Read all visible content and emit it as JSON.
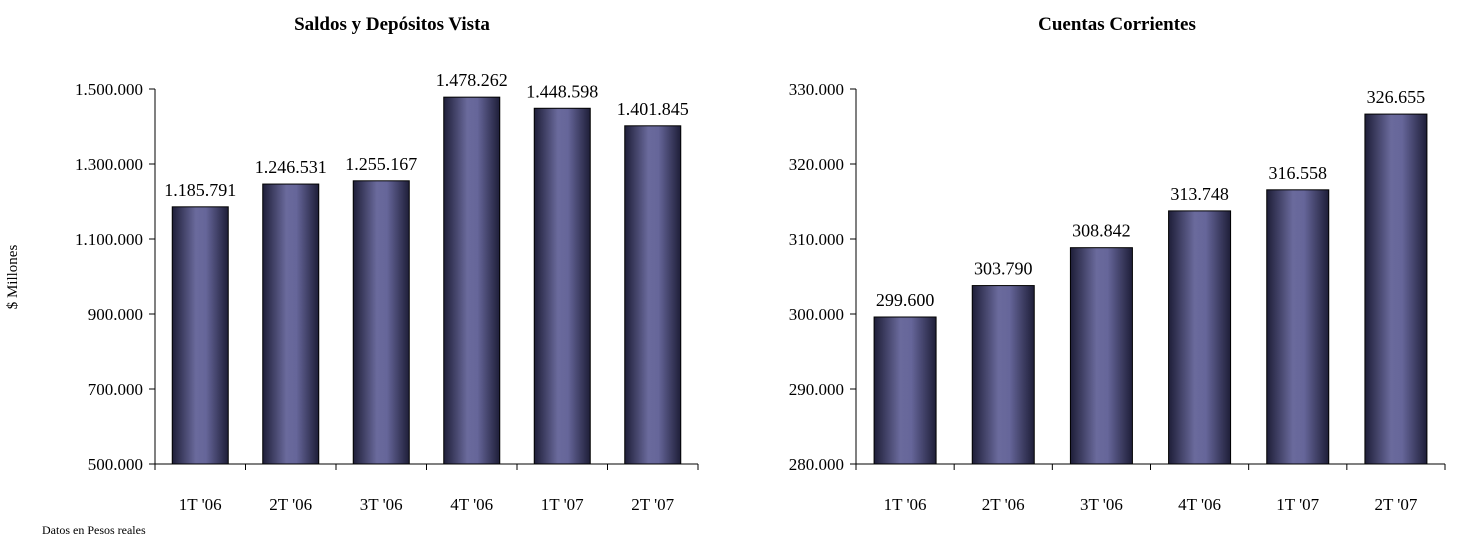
{
  "chart_data": [
    {
      "type": "bar",
      "title": "Saldos y Depósitos Vista",
      "ylabel": "$ Millones",
      "xlabel": "",
      "categories": [
        "1T '06",
        "2T '06",
        "3T '06",
        "4T '06",
        "1T '07",
        "2T '07"
      ],
      "values": [
        1185791,
        1246531,
        1255167,
        1478262,
        1448598,
        1401845
      ],
      "value_labels": [
        "1.185.791",
        "1.246.531",
        "1.255.167",
        "1.478.262",
        "1.448.598",
        "1.401.845"
      ],
      "ylim": [
        500000,
        1500000
      ],
      "yticks": [
        500000,
        700000,
        900000,
        1100000,
        1300000,
        1500000
      ],
      "ytick_labels": [
        "500.000",
        "700.000",
        "900.000",
        "1.100.000",
        "1.300.000",
        "1.500.000"
      ],
      "grid": false,
      "legend": "none"
    },
    {
      "type": "bar",
      "title": "Cuentas Corrientes",
      "ylabel": "",
      "xlabel": "",
      "categories": [
        "1T '06",
        "2T '06",
        "3T '06",
        "4T '06",
        "1T '07",
        "2T '07"
      ],
      "values": [
        299600,
        303790,
        308842,
        313748,
        316558,
        326655
      ],
      "value_labels": [
        "299.600",
        "303.790",
        "308.842",
        "313.748",
        "316.558",
        "326.655"
      ],
      "ylim": [
        280000,
        330000
      ],
      "yticks": [
        280000,
        290000,
        300000,
        310000,
        320000,
        330000
      ],
      "ytick_labels": [
        "280.000",
        "290.000",
        "300.000",
        "310.000",
        "320.000",
        "330.000"
      ],
      "grid": false,
      "legend": "none"
    }
  ],
  "footnote": "Datos en Pesos reales",
  "colors": {
    "bar_mid": "#6a6a9c",
    "bar_edge": "#1e1e38"
  }
}
